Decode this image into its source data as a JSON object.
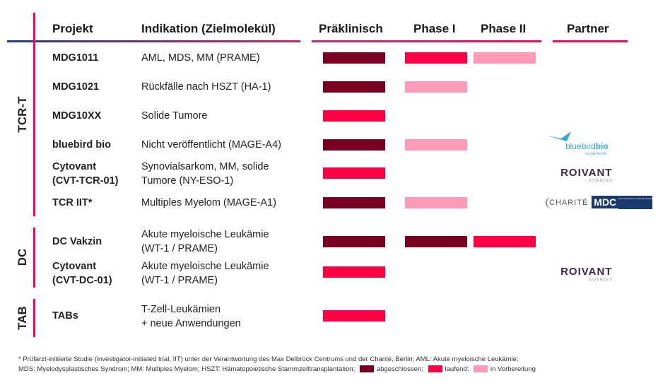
{
  "header": {
    "projekt": "Projekt",
    "indikation": "Indikation (Zielmolekül)",
    "preclinical": "Präklinisch",
    "phase1": "Phase I",
    "phase2": "Phase II",
    "partner": "Partner"
  },
  "colors": {
    "completed": "#7a0022",
    "ongoing": "#ff0044",
    "in_preparation": "#ff9ab8",
    "line_start": "#1e3a96",
    "line_end": "#ff0050"
  },
  "groups": [
    {
      "label": "TCR-T"
    },
    {
      "label": "DC"
    },
    {
      "label": "TAB"
    }
  ],
  "rows": [
    {
      "project": "MDG1011",
      "indication": "AML, MDS, MM (PRAME)",
      "preclinical": "completed",
      "phase1": "ongoing",
      "phase2": "in_preparation"
    },
    {
      "project": "MDG1021",
      "indication": "Rückfälle nach HSZT (HA-1)",
      "preclinical": "completed",
      "phase1": "in_preparation",
      "phase2": null
    },
    {
      "project": "MDG10XX",
      "indication": "Solide Tumore",
      "preclinical": "ongoing",
      "phase1": null,
      "phase2": null
    },
    {
      "project": "bluebird bio",
      "indication": "Nicht veröffentlicht (MAGE-A4)",
      "preclinical": "completed",
      "phase1": "in_preparation",
      "phase2": null,
      "partner": "bluebird bio"
    },
    {
      "project": "Cytovant (CVT-TCR-01)",
      "indication": "Synovialsarkom, MM, solide Tumore (NY-ESO-1)",
      "preclinical": "ongoing",
      "phase1": null,
      "phase2": null,
      "partner": "Roivant Sciences"
    },
    {
      "project": "TCR IIT*",
      "indication": "Multiples Myelom (MAGE-A1)",
      "preclinical": "completed",
      "phase1": "in_preparation",
      "phase2": null,
      "partner": "Charité / MDC"
    },
    {
      "project": "DC Vakzin",
      "indication": "Akute myeloische Leukämie (WT-1 / PRAME)",
      "preclinical": "completed",
      "phase1": "completed",
      "phase2": "ongoing"
    },
    {
      "project": "Cytovant (CVT-DC-01)",
      "indication": "Akute myeloische Leukämie (WT-1 / PRAME)",
      "preclinical": "ongoing",
      "phase1": null,
      "phase2": null,
      "partner": "Roivant Sciences"
    },
    {
      "project": "TABs",
      "indication": "T-Zell-Leukämien + neue Anwendungen",
      "preclinical": "ongoing",
      "phase1": null,
      "phase2": null
    }
  ],
  "row_text": {
    "r0": {
      "p": "MDG1011",
      "i": "AML, MDS, MM (PRAME)"
    },
    "r1": {
      "p": "MDG1021",
      "i": "Rückfälle nach HSZT (HA-1)"
    },
    "r2": {
      "p": "MDG10XX",
      "i": "Solide Tumore"
    },
    "r3": {
      "p": "bluebird bio",
      "i": "Nicht veröffentlicht (MAGE-A4)"
    },
    "r4": {
      "p1": "Cytovant",
      "p2": "(CVT-TCR-01)",
      "i1": "Synovialsarkom, MM, solide",
      "i2": "Tumore (NY-ESO-1)"
    },
    "r5": {
      "p": "TCR IIT*",
      "i": "Multiples Myelom (MAGE-A1)"
    },
    "r6": {
      "p": "DC Vakzin",
      "i1": "Akute myeloische Leukämie",
      "i2": "(WT-1 / PRAME)"
    },
    "r7": {
      "p1": "Cytovant",
      "p2": "(CVT-DC-01)",
      "i1": "Akute myeloische Leukämie",
      "i2": "(WT-1 / PRAME)"
    },
    "r8": {
      "p": "TABs",
      "i1": "T-Zell-Leukämien",
      "i2": "+ neue Anwendungen"
    }
  },
  "logos": {
    "bluebird": "bluebird",
    "bluebird_bio": "bio",
    "bluebird_tag": "recode for life",
    "roivant": "ROIVANT",
    "roivant_sub": "SCIENCES",
    "charite": "CHARITÉ",
    "mdc": "MDC",
    "mdc_sub": "MAX DELBRÜCK CENTER FOR MOLECULAR MEDICINE"
  },
  "footnote": {
    "line1": "* Prüfarzt-initiierte Studie (investigator-initiated trial, IIT) unter der Verantwortung des Max Delbrück Centrums und der Charité, Berlin; AML: Akute myeloische Leukämie;",
    "line2": "MDS: Myelodysplastisches Syndrom; MM: Multiples Myelom; HSZT: Hämatopoietische Stammzelltransplantation;",
    "legend_completed": "abgeschlossen;",
    "legend_ongoing": "laufend;",
    "legend_prep": "in Vorbereitung"
  }
}
